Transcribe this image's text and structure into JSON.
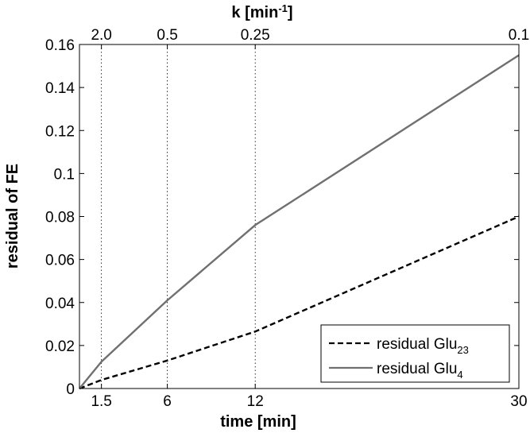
{
  "chart_data": {
    "type": "line",
    "xlabel": "time [min]",
    "ylabel": "residual of FE",
    "top_axis_label": "k [min",
    "top_axis_label_sup": "-1",
    "top_axis_label_end": "]",
    "xlim": [
      0,
      30
    ],
    "ylim": [
      0,
      0.16
    ],
    "x_ticks": [
      1.5,
      6,
      12,
      30
    ],
    "x_tick_labels": [
      "1.5",
      "6",
      "12",
      "30"
    ],
    "top_ticks": [
      1.5,
      6,
      12,
      30
    ],
    "top_tick_labels": [
      "2.0",
      "0.5",
      "0.25",
      "0.1"
    ],
    "y_ticks": [
      0,
      0.02,
      0.04,
      0.06,
      0.08,
      0.1,
      0.12,
      0.14,
      0.16
    ],
    "y_tick_labels": [
      "0",
      "0.02",
      "0.04",
      "0.06",
      "0.08",
      "0.1",
      "0.12",
      "0.14",
      "0.16"
    ],
    "grid": "dotted at x ticks",
    "legend_position": "bottom-right",
    "series": [
      {
        "name": "residual Glu",
        "name_sub": "23",
        "style": "dashed",
        "color": "#000000",
        "x": [
          0,
          1.5,
          6,
          12,
          30
        ],
        "y": [
          0,
          0.004,
          0.013,
          0.0265,
          0.08
        ]
      },
      {
        "name": "residual Glu",
        "name_sub": "4",
        "style": "solid",
        "color": "#707070",
        "x": [
          0,
          1.5,
          6,
          12,
          30
        ],
        "y": [
          0,
          0.0125,
          0.041,
          0.076,
          0.155
        ]
      }
    ]
  }
}
